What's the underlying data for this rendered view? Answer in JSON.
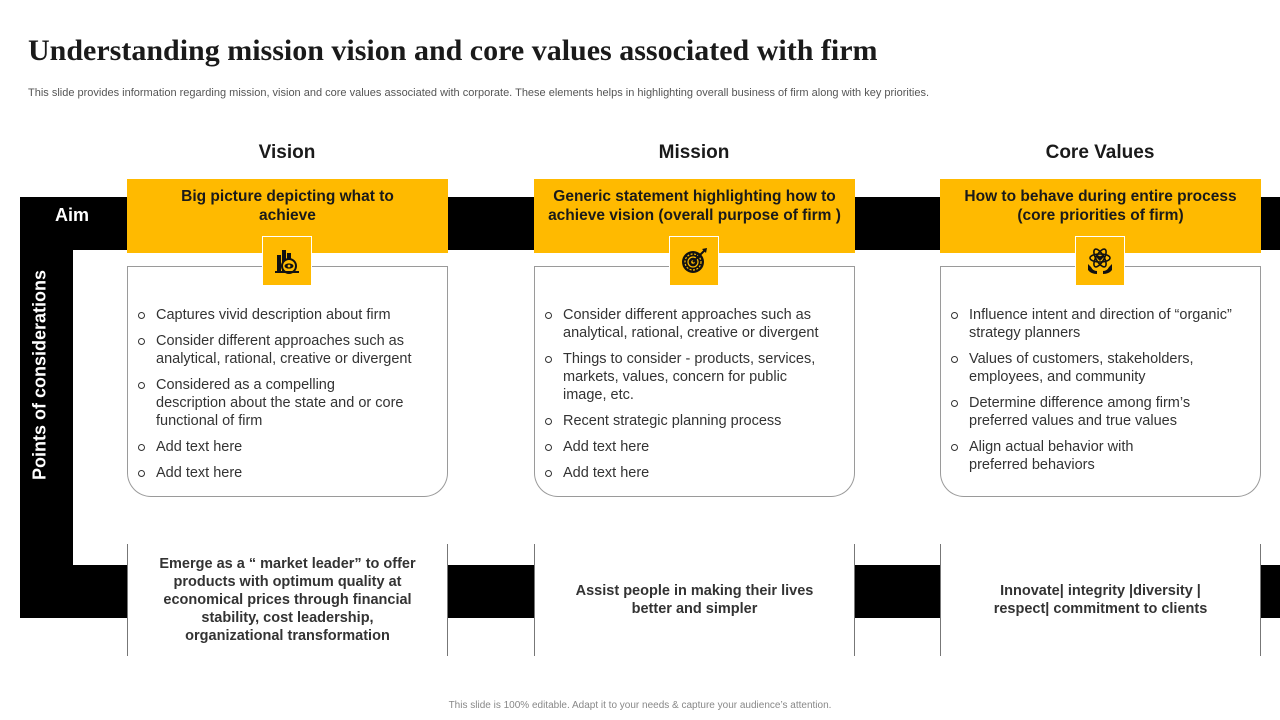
{
  "title": "Understanding mission vision and core values associated with firm",
  "subtitle": "This slide provides information regarding mission, vision and core values associated with corporate. These elements helps in highlighting overall business of firm along with key priorities.",
  "side_labels": {
    "aim": "Aim",
    "points": "Points of considerations"
  },
  "columns": [
    {
      "heading": "Vision",
      "aim": "Big picture depicting what to achieve",
      "icon": "vision-icon",
      "points": [
        "Captures vivid description about firm",
        "Consider different approaches such as analytical, rational, creative or divergent",
        "Considered as a compelling description about the state and or core functional of firm",
        "Add text here",
        "Add text here"
      ],
      "bottom": "Emerge as a “ market leader” to offer products with optimum  quality at economical prices through financial stability, cost leadership, organizational transformation"
    },
    {
      "heading": "Mission",
      "aim": "Generic statement highlighting how to achieve vision (overall purpose of firm )",
      "icon": "target-icon",
      "points": [
        "Consider different approaches such as analytical, rational, creative or divergent",
        "Things to consider - products, services, markets, values, concern for public image, etc.",
        "Recent strategic planning process",
        "Add text here",
        "Add text here"
      ],
      "bottom": "Assist  people in making  their lives better and simpler"
    },
    {
      "heading": "Core Values",
      "aim": "How to behave during entire process (core priorities of firm)",
      "icon": "core-values-icon",
      "points": [
        "Influence intent and direction of “organic” strategy planners",
        "Values of customers, stakeholders, employees, and community",
        "Determine difference among firm’s preferred values and true values",
        "Align  actual behavior with preferred behaviors"
      ],
      "bottom": "Innovate| integrity |diversity | respect| commitment to clients"
    }
  ],
  "colors": {
    "accent": "#FFBA00",
    "dark": "#000000"
  },
  "footer": "This slide is 100% editable.  Adapt it to your needs & capture your audience’s attention."
}
